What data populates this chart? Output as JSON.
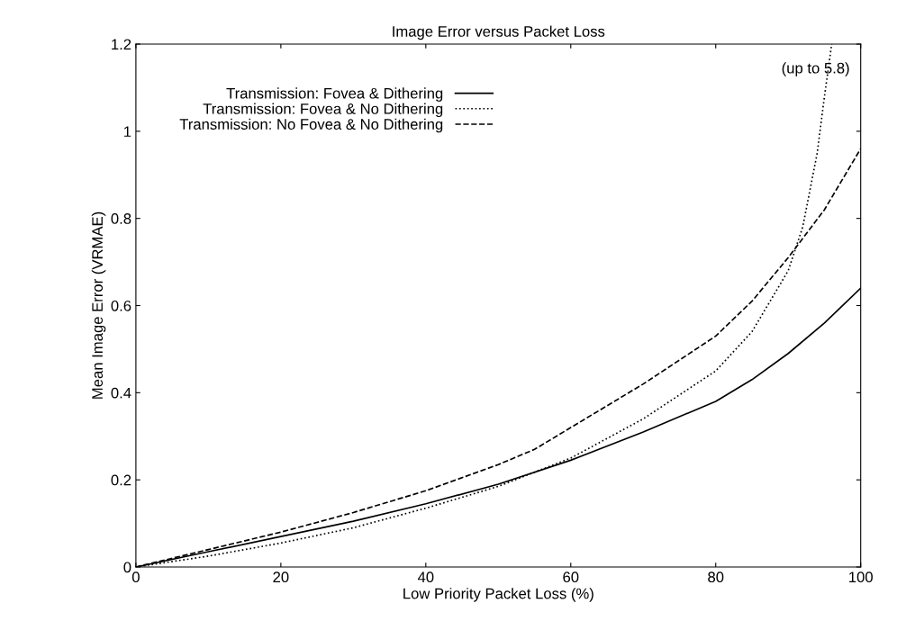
{
  "chart_data": {
    "type": "line",
    "title": "Image Error versus Packet Loss",
    "xlabel": "Low Priority Packet Loss (%)",
    "ylabel": "Mean Image Error (VRMAE)",
    "xlim": [
      0,
      100
    ],
    "xticks": [
      0,
      20,
      40,
      60,
      80,
      100
    ],
    "ylim": [
      0,
      1.2
    ],
    "yticks": [
      0,
      0.2,
      0.4,
      0.6,
      0.8,
      1,
      1.2
    ],
    "grid": false,
    "legend": "top left",
    "marker": "none",
    "annotations": [
      "(up to 5.8)"
    ],
    "series": [
      {
        "name": "Transmission: Fovea & Dithering",
        "color": "#000000",
        "line_style": "solid",
        "x": [
          0,
          10,
          20,
          30,
          40,
          50,
          60,
          70,
          80,
          85,
          90,
          95,
          100
        ],
        "values": [
          0,
          0.035,
          0.07,
          0.105,
          0.145,
          0.19,
          0.245,
          0.31,
          0.38,
          0.43,
          0.49,
          0.56,
          0.64
        ]
      },
      {
        "name": "Transmission: Fovea & No Dithering",
        "color": "#000000",
        "line_style": "dotted",
        "x": [
          0,
          10,
          20,
          30,
          40,
          50,
          60,
          70,
          80,
          85,
          90,
          92,
          94,
          95,
          96
        ],
        "values": [
          0,
          0.025,
          0.055,
          0.09,
          0.135,
          0.185,
          0.25,
          0.34,
          0.45,
          0.54,
          0.68,
          0.78,
          0.95,
          1.08,
          1.2
        ]
      },
      {
        "name": "Transmission: No Fovea & No Dithering",
        "color": "#000000",
        "line_style": "dashed",
        "x": [
          0,
          10,
          20,
          30,
          40,
          50,
          55,
          60,
          70,
          80,
          85,
          90,
          95,
          100
        ],
        "values": [
          0,
          0.04,
          0.08,
          0.125,
          0.175,
          0.235,
          0.27,
          0.32,
          0.42,
          0.53,
          0.61,
          0.71,
          0.82,
          0.96
        ]
      }
    ]
  }
}
